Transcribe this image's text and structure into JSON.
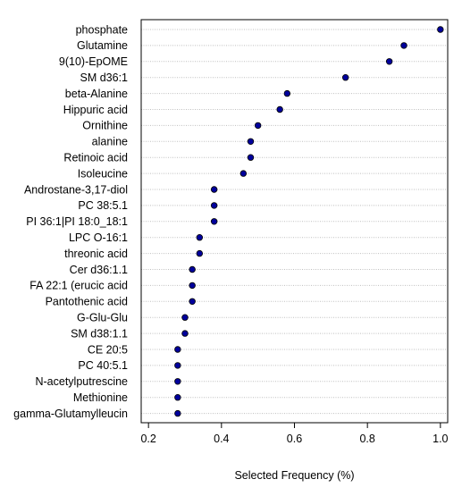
{
  "chart_data": {
    "type": "scatter",
    "xlabel": "Selected Frequency (%)",
    "ylabel": "",
    "xlim": [
      0.18,
      1.02
    ],
    "x_ticks": [
      0.2,
      0.4,
      0.6,
      0.8,
      1.0
    ],
    "x_tick_labels": [
      "0.2",
      "0.4",
      "0.6",
      "0.8",
      "1.0"
    ],
    "grid": "horizontal dotted lines at each category",
    "marker_color": "#00009c",
    "marker_edge_color": "#000000",
    "categories": [
      "phosphate",
      "Glutamine",
      "9(10)-EpOME",
      "SM d36:1",
      "beta-Alanine",
      "Hippuric acid",
      "Ornithine",
      "alanine",
      "Retinoic acid",
      "Isoleucine",
      "Androstane-3,17-diol",
      "PC 38:5.1",
      "PI 36:1|PI 18:0_18:1",
      "LPC O-16:1",
      "threonic acid",
      "Cer d36:1.1",
      "FA 22:1 (erucic acid",
      "Pantothenic acid",
      "G-Glu-Glu",
      "SM d38:1.1",
      "CE 20:5",
      "PC 40:5.1",
      "N-acetylputrescine",
      "Methionine",
      "gamma-Glutamylleucin"
    ],
    "values": [
      1.0,
      0.9,
      0.86,
      0.74,
      0.58,
      0.56,
      0.5,
      0.48,
      0.48,
      0.46,
      0.38,
      0.38,
      0.38,
      0.34,
      0.34,
      0.32,
      0.32,
      0.32,
      0.3,
      0.3,
      0.28,
      0.28,
      0.28,
      0.28,
      0.28
    ]
  }
}
